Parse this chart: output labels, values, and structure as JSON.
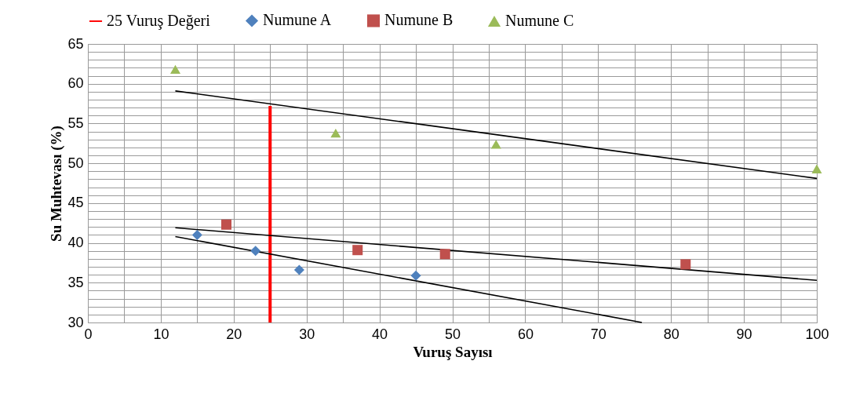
{
  "chart_data": {
    "type": "scatter",
    "xlabel": "Vuruş Sayısı",
    "ylabel": "Su Muhtevası (%)",
    "xlim": [
      0,
      100
    ],
    "ylim": [
      30,
      65
    ],
    "xticks": [
      0,
      {
        "value": 5,
        "label": null
      },
      10,
      {
        "value": 15,
        "label": null
      },
      20,
      {
        "value": 25,
        "label": null
      },
      30,
      {
        "value": 35,
        "label": null
      },
      40,
      {
        "value": 45,
        "label": null
      },
      50,
      {
        "value": 55,
        "label": null
      },
      60,
      {
        "value": 65,
        "label": null
      },
      70,
      {
        "value": 75,
        "label": null
      },
      80,
      {
        "value": 85,
        "label": null
      },
      90,
      {
        "value": 95,
        "label": null
      },
      100
    ],
    "yticks": [
      30,
      {
        "value": 31,
        "label": null
      },
      {
        "value": 32,
        "label": null
      },
      {
        "value": 33,
        "label": null
      },
      {
        "value": 34,
        "label": null
      },
      35,
      {
        "value": 36,
        "label": null
      },
      {
        "value": 37,
        "label": null
      },
      {
        "value": 38,
        "label": null
      },
      {
        "value": 39,
        "label": null
      },
      40,
      {
        "value": 41,
        "label": null
      },
      {
        "value": 42,
        "label": null
      },
      {
        "value": 43,
        "label": null
      },
      {
        "value": 44,
        "label": null
      },
      45,
      {
        "value": 46,
        "label": null
      },
      {
        "value": 47,
        "label": null
      },
      {
        "value": 48,
        "label": null
      },
      {
        "value": 49,
        "label": null
      },
      50,
      {
        "value": 51,
        "label": null
      },
      {
        "value": 52,
        "label": null
      },
      {
        "value": 53,
        "label": null
      },
      {
        "value": 54,
        "label": null
      },
      55,
      {
        "value": 56,
        "label": null
      },
      {
        "value": 57,
        "label": null
      },
      {
        "value": 58,
        "label": null
      },
      {
        "value": 59,
        "label": null
      },
      60,
      {
        "value": 61,
        "label": null
      },
      {
        "value": 62,
        "label": null
      },
      {
        "value": 63,
        "label": null
      },
      {
        "value": 64,
        "label": null
      },
      65
    ],
    "grid": true,
    "legend": "top",
    "series": [
      {
        "name": "25 Vuruş Değeri",
        "type": "line",
        "color": "#ff0000",
        "x": [
          25,
          25
        ],
        "values": [
          30,
          57.2
        ]
      },
      {
        "name": "Numune A",
        "type": "scatter",
        "marker": "diamond",
        "color": "#4f81bd",
        "x": [
          15,
          23,
          29,
          45
        ],
        "values": [
          41,
          39,
          36.6,
          35.9
        ]
      },
      {
        "name": "Numune B",
        "type": "scatter",
        "marker": "square",
        "color": "#c0504d",
        "x": [
          19,
          37,
          49,
          82
        ],
        "values": [
          42.3,
          39.1,
          38.6,
          37.3
        ]
      },
      {
        "name": "Numune C",
        "type": "scatter",
        "marker": "triangle",
        "color": "#9bbb59",
        "x": [
          12,
          34,
          56,
          100
        ],
        "values": [
          61.8,
          53.8,
          52.4,
          49.3
        ]
      },
      {
        "type": "line",
        "color": "#000000",
        "x": [
          12,
          76
        ],
        "values": [
          40.8,
          30
        ]
      },
      {
        "type": "line",
        "color": "#000000",
        "x": [
          12,
          100
        ],
        "values": [
          41.9,
          35.3
        ]
      },
      {
        "type": "line",
        "color": "#000000",
        "x": [
          12,
          100
        ],
        "values": [
          59.1,
          48.1
        ]
      }
    ]
  }
}
